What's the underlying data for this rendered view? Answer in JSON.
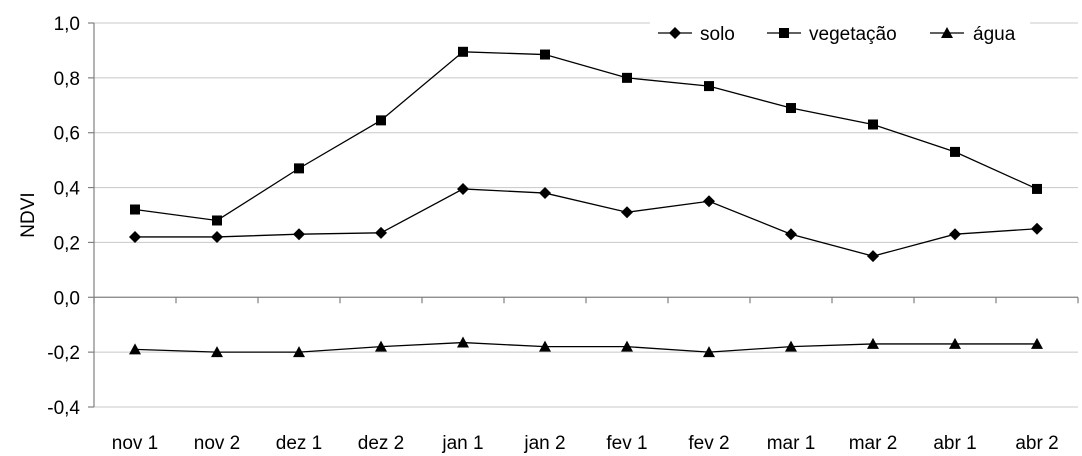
{
  "chart_data": {
    "type": "line",
    "ylabel": "NDVI",
    "xlabel": "",
    "categories": [
      "nov 1",
      "nov 2",
      "dez 1",
      "dez 2",
      "jan 1",
      "jan 2",
      "fev 1",
      "fev 2",
      "mar 1",
      "mar 2",
      "abr 1",
      "abr 2"
    ],
    "ylim": [
      -0.4,
      1.0
    ],
    "yticks": [
      1.0,
      0.8,
      0.6,
      0.4,
      0.2,
      0.0,
      -0.2,
      -0.4
    ],
    "ytick_labels": [
      "1,0",
      "0,8",
      "0,6",
      "0,4",
      "0,2",
      "0,0",
      "-0,2",
      "-0,4"
    ],
    "grid": "horizontal",
    "legend_position": "top-right",
    "series": [
      {
        "name": "solo",
        "marker": "diamond",
        "values": [
          0.22,
          0.22,
          0.23,
          0.235,
          0.395,
          0.38,
          0.31,
          0.35,
          0.23,
          0.15,
          0.23,
          0.25
        ]
      },
      {
        "name": "vegetação",
        "marker": "square",
        "values": [
          0.32,
          0.28,
          0.47,
          0.645,
          0.895,
          0.885,
          0.8,
          0.77,
          0.69,
          0.63,
          0.53,
          0.395
        ]
      },
      {
        "name": "água",
        "marker": "triangle",
        "values": [
          -0.19,
          -0.2,
          -0.2,
          -0.18,
          -0.165,
          -0.18,
          -0.18,
          -0.2,
          -0.18,
          -0.17,
          -0.17,
          -0.17
        ]
      }
    ]
  }
}
